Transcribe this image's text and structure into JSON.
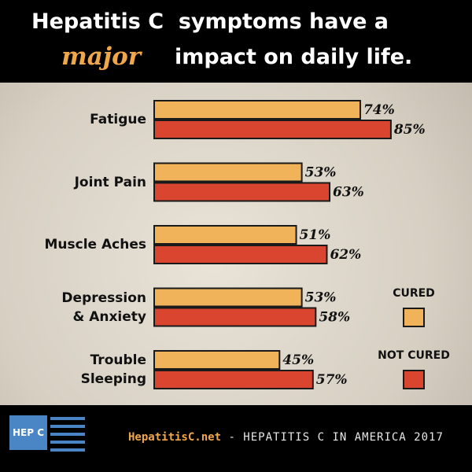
{
  "chart_data": {
    "type": "bar",
    "orientation": "horizontal",
    "title_parts": [
      "Hepatitis C  symptoms have a",
      "major",
      "impact on daily life."
    ],
    "categories": [
      "Fatigue",
      "Joint Pain",
      "Muscle Aches",
      "Depression\n& Anxiety",
      "Trouble\nSleeping"
    ],
    "series": [
      {
        "name": "CURED",
        "color": "#f0b35a",
        "values": [
          74,
          53,
          51,
          53,
          45
        ],
        "value_labels": [
          "74%",
          "53%",
          "51%",
          "53%",
          "45%"
        ]
      },
      {
        "name": "NOT CURED",
        "color": "#d9452e",
        "values": [
          85,
          63,
          62,
          58,
          57
        ],
        "value_labels": [
          "85%",
          "63%",
          "62%",
          "58%",
          "57%"
        ]
      }
    ],
    "legend": "right",
    "footer": {
      "logo": "HEP C",
      "site": "HepatitisC.net",
      "source": " - HEPATITIS C IN AMERICA 2017"
    }
  }
}
